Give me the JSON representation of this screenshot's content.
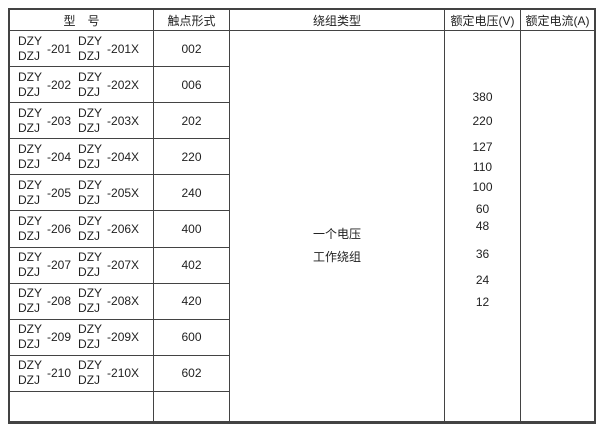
{
  "page": {
    "background_color": "#ffffff",
    "border_color": "#434343",
    "text_color": "#1f1f1f"
  },
  "table": {
    "headers": {
      "model": "型　号",
      "contact_form": "触点形式",
      "winding_type": "绕组类型",
      "rated_voltage": "额定电压(V)",
      "rated_current": "额定电流(A)"
    },
    "rows": [
      {
        "brand_top": "DZY",
        "brand_bottom": "DZJ",
        "model_suffix": "-201",
        "model_suffix_x": "-201X",
        "contact_form": "002"
      },
      {
        "brand_top": "DZY",
        "brand_bottom": "DZJ",
        "model_suffix": "-202",
        "model_suffix_x": "-202X",
        "contact_form": "006"
      },
      {
        "brand_top": "DZY",
        "brand_bottom": "DZJ",
        "model_suffix": "-203",
        "model_suffix_x": "-203X",
        "contact_form": "202"
      },
      {
        "brand_top": "DZY",
        "brand_bottom": "DZJ",
        "model_suffix": "-204",
        "model_suffix_x": "-204X",
        "contact_form": "220"
      },
      {
        "brand_top": "DZY",
        "brand_bottom": "DZJ",
        "model_suffix": "-205",
        "model_suffix_x": "-205X",
        "contact_form": "240"
      },
      {
        "brand_top": "DZY",
        "brand_bottom": "DZJ",
        "model_suffix": "-206",
        "model_suffix_x": "-206X",
        "contact_form": "400"
      },
      {
        "brand_top": "DZY",
        "brand_bottom": "DZJ",
        "model_suffix": "-207",
        "model_suffix_x": "-207X",
        "contact_form": "402"
      },
      {
        "brand_top": "DZY",
        "brand_bottom": "DZJ",
        "model_suffix": "-208",
        "model_suffix_x": "-208X",
        "contact_form": "420"
      },
      {
        "brand_top": "DZY",
        "brand_bottom": "DZJ",
        "model_suffix": "-209",
        "model_suffix_x": "-209X",
        "contact_form": "600"
      },
      {
        "brand_top": "DZY",
        "brand_bottom": "DZJ",
        "model_suffix": "-210",
        "model_suffix_x": "-210X",
        "contact_form": "602"
      }
    ],
    "winding_type_lines": [
      "一个电压",
      "工作绕组"
    ],
    "voltages": [
      "380",
      "220",
      "127",
      "110",
      "100",
      "60",
      "48",
      "36",
      "24",
      "12"
    ]
  }
}
